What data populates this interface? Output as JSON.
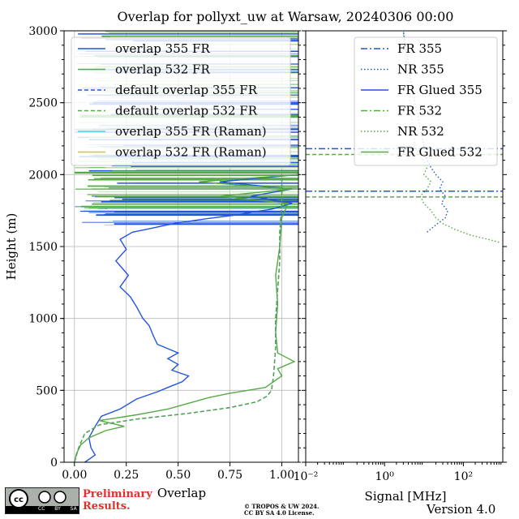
{
  "chart_data": [
    {
      "type": "line",
      "title": "Overlap for pollyxt_uw at Warsaw, 20240306 00:00",
      "xlabel": "Overlap",
      "ylabel": "Height (m)",
      "xlim": [
        -0.05,
        1.08
      ],
      "ylim": [
        0,
        3000
      ],
      "xticks": [
        "0.00",
        "0.25",
        "0.50",
        "0.75",
        "1.00"
      ],
      "yticks": [
        "0",
        "500",
        "1000",
        "1500",
        "2000",
        "2500",
        "3000"
      ],
      "grid": true,
      "legend_position": "top-right",
      "series": [
        {
          "name": "overlap 355 FR",
          "color": "#2255dd",
          "style": "solid",
          "points": [
            [
              0.05,
              0
            ],
            [
              0.1,
              50
            ],
            [
              0.08,
              100
            ],
            [
              0.07,
              170
            ],
            [
              0.1,
              250
            ],
            [
              0.13,
              320
            ],
            [
              0.22,
              370
            ],
            [
              0.3,
              440
            ],
            [
              0.4,
              490
            ],
            [
              0.45,
              520
            ],
            [
              0.52,
              560
            ],
            [
              0.55,
              600
            ],
            [
              0.47,
              640
            ],
            [
              0.5,
              680
            ],
            [
              0.45,
              720
            ],
            [
              0.5,
              760
            ],
            [
              0.4,
              820
            ],
            [
              0.38,
              880
            ],
            [
              0.36,
              950
            ],
            [
              0.33,
              1000
            ],
            [
              0.3,
              1080
            ],
            [
              0.27,
              1150
            ],
            [
              0.22,
              1220
            ],
            [
              0.26,
              1300
            ],
            [
              0.2,
              1400
            ],
            [
              0.25,
              1480
            ],
            [
              0.22,
              1550
            ],
            [
              0.28,
              1600
            ],
            [
              0.35,
              1620
            ],
            [
              0.48,
              1660
            ],
            [
              0.62,
              1690
            ],
            [
              0.78,
              1720
            ],
            [
              0.95,
              1760
            ],
            [
              1.05,
              1800
            ],
            [
              0.85,
              1850
            ],
            [
              1.05,
              1900
            ],
            [
              0.7,
              1950
            ],
            [
              1.08,
              2000
            ]
          ]
        },
        {
          "name": "overlap 532 FR",
          "color": "#55aa44",
          "style": "solid",
          "points": [
            [
              0.0,
              0
            ],
            [
              0.01,
              60
            ],
            [
              0.03,
              120
            ],
            [
              0.07,
              170
            ],
            [
              0.15,
              220
            ],
            [
              0.24,
              250
            ],
            [
              0.12,
              290
            ],
            [
              0.3,
              330
            ],
            [
              0.45,
              370
            ],
            [
              0.55,
              410
            ],
            [
              0.65,
              450
            ],
            [
              0.75,
              480
            ],
            [
              0.92,
              520
            ],
            [
              0.96,
              560
            ],
            [
              1.0,
              600
            ],
            [
              0.98,
              650
            ],
            [
              1.06,
              700
            ],
            [
              0.98,
              760
            ],
            [
              0.97,
              900
            ],
            [
              0.98,
              1100
            ],
            [
              0.97,
              1300
            ],
            [
              0.99,
              1500
            ],
            [
              1.0,
              1700
            ],
            [
              1.03,
              1800
            ],
            [
              0.7,
              1850
            ],
            [
              1.05,
              1900
            ],
            [
              0.6,
              1950
            ],
            [
              1.08,
              2000
            ]
          ]
        },
        {
          "name": "default overlap 355 FR",
          "color": "#2255dd",
          "style": "dashed",
          "points": [
            [
              0.0,
              0
            ],
            [
              0.02,
              100
            ],
            [
              0.05,
              200
            ],
            [
              0.12,
              260
            ],
            [
              0.3,
              300
            ],
            [
              0.55,
              340
            ],
            [
              0.75,
              380
            ],
            [
              0.88,
              420
            ],
            [
              0.93,
              460
            ],
            [
              0.95,
              500
            ],
            [
              0.96,
              600
            ],
            [
              0.97,
              800
            ],
            [
              0.97,
              1000
            ],
            [
              0.98,
              1200
            ],
            [
              0.99,
              1400
            ],
            [
              0.99,
              1600
            ],
            [
              1.0,
              1800
            ],
            [
              1.0,
              2000
            ]
          ]
        },
        {
          "name": "default overlap 532 FR",
          "color": "#55aa44",
          "style": "dashed",
          "points": [
            [
              0.0,
              0
            ],
            [
              0.02,
              100
            ],
            [
              0.05,
              200
            ],
            [
              0.12,
              260
            ],
            [
              0.3,
              300
            ],
            [
              0.55,
              340
            ],
            [
              0.75,
              380
            ],
            [
              0.88,
              420
            ],
            [
              0.93,
              460
            ],
            [
              0.95,
              500
            ],
            [
              0.96,
              600
            ],
            [
              0.97,
              800
            ],
            [
              0.97,
              1000
            ],
            [
              0.98,
              1200
            ],
            [
              0.99,
              1400
            ],
            [
              0.99,
              1600
            ],
            [
              1.0,
              1800
            ],
            [
              1.0,
              2000
            ]
          ]
        },
        {
          "name": "overlap 355 FR (Raman)",
          "color": "#33dddd",
          "style": "solid",
          "points": []
        },
        {
          "name": "overlap 532 FR (Raman)",
          "color": "#cccc22",
          "style": "solid",
          "points": []
        }
      ]
    },
    {
      "type": "line",
      "xlabel": "Signal [MHz]",
      "xscale": "log",
      "xlim": [
        0.01,
        1000
      ],
      "ylim": [
        0,
        3000
      ],
      "xticks": [
        "10⁻²",
        "10⁰",
        "10²"
      ],
      "grid": false,
      "legend_position": "top-right",
      "series": [
        {
          "name": "FR 355",
          "color": "#2255dd",
          "style": "dashdot",
          "points": []
        },
        {
          "name": "NR 355",
          "color": "#2255dd",
          "style": "dotted",
          "points": [
            [
              12,
              1600
            ],
            [
              20,
              1650
            ],
            [
              35,
              1700
            ],
            [
              40,
              1750
            ],
            [
              28,
              1800
            ],
            [
              35,
              1850
            ],
            [
              25,
              1900
            ],
            [
              30,
              1950
            ],
            [
              20,
              2000
            ],
            [
              15,
              2050
            ],
            [
              12,
              2100
            ],
            [
              10,
              2200
            ],
            [
              5,
              2600
            ],
            [
              3,
              3000
            ]
          ]
        },
        {
          "name": "FR Glued 355",
          "color": "#2255dd",
          "style": "solid",
          "points": []
        },
        {
          "name": "FR 532",
          "color": "#55aa44",
          "style": "dashdot",
          "points": []
        },
        {
          "name": "NR 532",
          "color": "#55aa44",
          "style": "dotted",
          "points": [
            [
              800,
              1530
            ],
            [
              300,
              1560
            ],
            [
              150,
              1580
            ],
            [
              60,
              1620
            ],
            [
              30,
              1660
            ],
            [
              20,
              1700
            ],
            [
              15,
              1750
            ],
            [
              10,
              1800
            ],
            [
              8,
              1850
            ],
            [
              12,
              1900
            ],
            [
              15,
              1950
            ],
            [
              10,
              2000
            ],
            [
              12,
              2050
            ],
            [
              6,
              2200
            ],
            [
              4,
              2600
            ],
            [
              3,
              3000
            ]
          ]
        },
        {
          "name": "FR Glued 532",
          "color": "#55aa44",
          "style": "solid",
          "points": []
        }
      ],
      "hlines": [
        {
          "y": 2180,
          "color": "#2255dd",
          "style": "dashdot"
        },
        {
          "y": 1885,
          "color": "#2255dd",
          "style": "dashdot"
        },
        {
          "y": 2140,
          "color": "#55aa44",
          "style": "dashed"
        },
        {
          "y": 1845,
          "color": "#55aa44",
          "style": "dashed"
        }
      ]
    }
  ],
  "footer": {
    "preliminary": [
      "Preliminary",
      "Results."
    ],
    "copyright": [
      "© TROPOS & UW 2024.",
      "CC BY SA 4.0 License."
    ],
    "version": "Version 4.0",
    "license_badge": "CC BY SA"
  }
}
